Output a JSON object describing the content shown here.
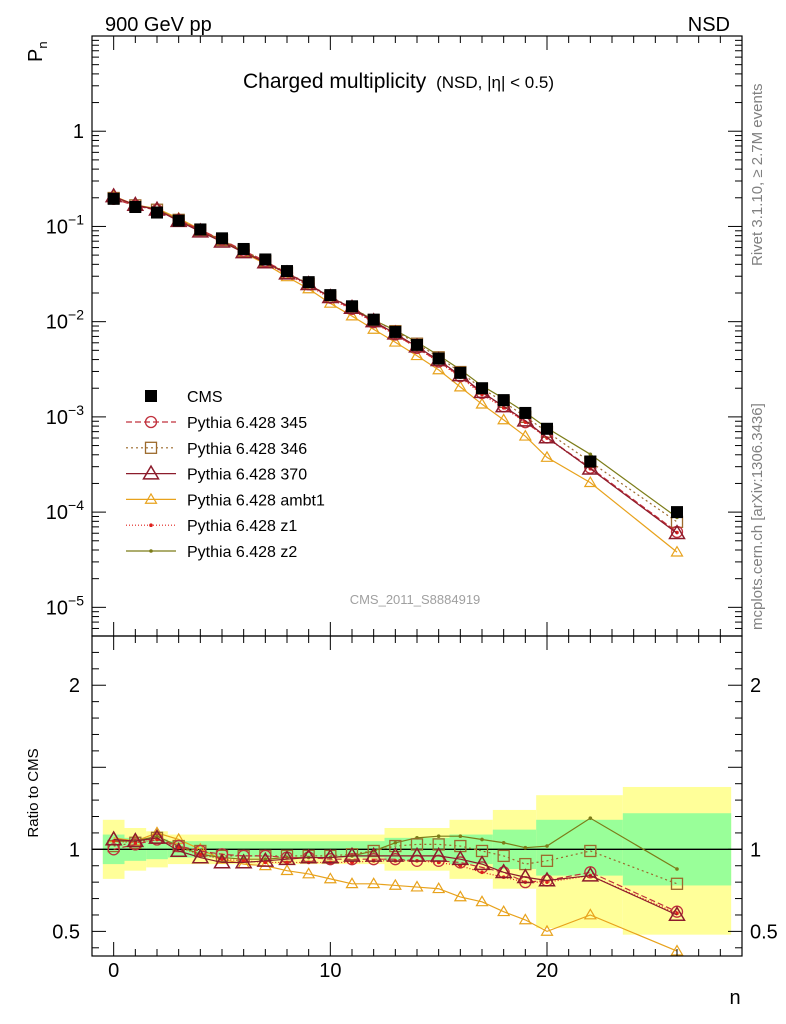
{
  "header": {
    "energy_label": "900 GeV pp",
    "process_label": "NSD"
  },
  "side_labels": {
    "rivet": "Rivet 3.1.10, ≥ 2.7M events",
    "mcplots": "mcplots.cern.ch [arXiv:1306.3436]"
  },
  "chart_data": {
    "type": "line",
    "title": "Charged multiplicity",
    "subtitle": "(NSD, |η| < 0.5)",
    "analysis_id": "CMS_2011_S8884919",
    "xlabel": "n",
    "ylabel": "P_n",
    "ratio_ylabel": "Ratio to CMS",
    "xlim": [
      -1,
      29
    ],
    "ylim": [
      5e-06,
      10
    ],
    "yscale": "log",
    "ratio_ylim": [
      0.35,
      2.3
    ],
    "x_ticks": [
      0,
      10,
      20
    ],
    "main_y_ticks": [
      {
        "value": 1e-05,
        "base": "10",
        "exp": "−5"
      },
      {
        "value": 0.0001,
        "base": "10",
        "exp": "−4"
      },
      {
        "value": 0.001,
        "base": "10",
        "exp": "−3"
      },
      {
        "value": 0.01,
        "base": "10",
        "exp": "−2"
      },
      {
        "value": 0.1,
        "base": "10",
        "exp": "−1"
      },
      {
        "value": 1,
        "base": "1",
        "exp": ""
      }
    ],
    "ratio_y_ticks": [
      {
        "value": 0.5,
        "label": "0.5"
      },
      {
        "value": 1,
        "label": "1"
      },
      {
        "value": 2,
        "label": "2"
      }
    ],
    "x": [
      0,
      1,
      2,
      3,
      4,
      5,
      6,
      7,
      8,
      9,
      10,
      11,
      12,
      13,
      14,
      15,
      16,
      17,
      18,
      19,
      20,
      22,
      26
    ],
    "data": {
      "name": "CMS",
      "values": [
        0.195,
        0.16,
        0.14,
        0.115,
        0.093,
        0.075,
        0.058,
        0.045,
        0.034,
        0.026,
        0.019,
        0.0145,
        0.0105,
        0.0078,
        0.0057,
        0.0041,
        0.0029,
        0.002,
        0.0015,
        0.0011,
        0.00075,
        0.00034,
        0.0001
      ],
      "ratio_band_inner": [
        {
          "x0": -0.5,
          "x1": 0.5,
          "lo": 0.91,
          "hi": 1.09
        },
        {
          "x0": 0.5,
          "x1": 1.5,
          "lo": 0.93,
          "hi": 1.07
        },
        {
          "x0": 1.5,
          "x1": 2.5,
          "lo": 0.94,
          "hi": 1.06
        },
        {
          "x0": 2.5,
          "x1": 12.5,
          "lo": 0.95,
          "hi": 1.05
        },
        {
          "x0": 12.5,
          "x1": 15.5,
          "lo": 0.93,
          "hi": 1.07
        },
        {
          "x0": 15.5,
          "x1": 17.5,
          "lo": 0.91,
          "hi": 1.09
        },
        {
          "x0": 17.5,
          "x1": 19.5,
          "lo": 0.88,
          "hi": 1.12
        },
        {
          "x0": 19.5,
          "x1": 23.5,
          "lo": 0.84,
          "hi": 1.18
        },
        {
          "x0": 23.5,
          "x1": 28.5,
          "lo": 0.78,
          "hi": 1.22
        }
      ],
      "ratio_band_outer": [
        {
          "x0": -0.5,
          "x1": 0.5,
          "lo": 0.82,
          "hi": 1.18
        },
        {
          "x0": 0.5,
          "x1": 1.5,
          "lo": 0.87,
          "hi": 1.13
        },
        {
          "x0": 1.5,
          "x1": 2.5,
          "lo": 0.89,
          "hi": 1.11
        },
        {
          "x0": 2.5,
          "x1": 12.5,
          "lo": 0.91,
          "hi": 1.09
        },
        {
          "x0": 12.5,
          "x1": 15.5,
          "lo": 0.87,
          "hi": 1.13
        },
        {
          "x0": 15.5,
          "x1": 17.5,
          "lo": 0.82,
          "hi": 1.18
        },
        {
          "x0": 17.5,
          "x1": 19.5,
          "lo": 0.76,
          "hi": 1.24
        },
        {
          "x0": 19.5,
          "x1": 23.5,
          "lo": 0.52,
          "hi": 1.33
        },
        {
          "x0": 23.5,
          "x1": 28.5,
          "lo": 0.48,
          "hi": 1.38
        }
      ]
    },
    "series": [
      {
        "name": "Pythia 6.428 345",
        "color": "#c0303c",
        "marker": "circle",
        "dash": "6,3",
        "ratio": [
          1.0,
          1.03,
          1.06,
          1.02,
          0.99,
          0.97,
          0.96,
          0.96,
          0.95,
          0.95,
          0.94,
          0.94,
          0.94,
          0.94,
          0.93,
          0.93,
          0.92,
          0.89,
          0.86,
          0.8,
          0.81,
          0.86,
          0.62
        ]
      },
      {
        "name": "Pythia 6.428 346",
        "color": "#9c6a2c",
        "marker": "square",
        "dash": "2,3",
        "ratio": [
          1.02,
          1.04,
          1.07,
          1.02,
          0.99,
          0.96,
          0.96,
          0.96,
          0.96,
          0.96,
          0.96,
          0.97,
          0.99,
          1.02,
          1.03,
          1.03,
          1.02,
          0.99,
          0.96,
          0.91,
          0.93,
          0.99,
          0.79
        ]
      },
      {
        "name": "Pythia 6.428 370",
        "color": "#8c1c2c",
        "marker": "triangle",
        "dash": "",
        "ratio": [
          1.06,
          1.05,
          1.07,
          0.99,
          0.95,
          0.92,
          0.92,
          0.93,
          0.94,
          0.95,
          0.95,
          0.96,
          0.96,
          0.96,
          0.96,
          0.96,
          0.94,
          0.91,
          0.86,
          0.83,
          0.81,
          0.84,
          0.6
        ]
      },
      {
        "name": "Pythia 6.428 ambt1",
        "color": "#e8a21c",
        "marker": "triangle-small",
        "dash": "",
        "ratio": [
          1.07,
          1.05,
          1.1,
          1.06,
          1.0,
          0.94,
          0.91,
          0.9,
          0.87,
          0.85,
          0.82,
          0.79,
          0.79,
          0.78,
          0.77,
          0.76,
          0.71,
          0.68,
          0.62,
          0.57,
          0.5,
          0.6,
          0.38
        ]
      },
      {
        "name": "Pythia 6.428 z1",
        "color": "#e0201c",
        "marker": "dot",
        "dash": "1,2",
        "ratio": [
          1.05,
          1.04,
          1.06,
          1.01,
          0.97,
          0.94,
          0.93,
          0.92,
          0.92,
          0.92,
          0.92,
          0.92,
          0.93,
          0.93,
          0.93,
          0.92,
          0.9,
          0.86,
          0.83,
          0.8,
          0.8,
          0.84,
          0.61
        ]
      },
      {
        "name": "Pythia 6.428 z2",
        "color": "#7c7c18",
        "marker": "dot",
        "dash": "",
        "ratio": [
          1.05,
          1.05,
          1.08,
          1.02,
          0.97,
          0.95,
          0.94,
          0.94,
          0.95,
          0.95,
          0.95,
          0.96,
          0.99,
          1.04,
          1.07,
          1.08,
          1.08,
          1.06,
          1.04,
          1.01,
          1.02,
          1.19,
          0.88
        ]
      }
    ]
  }
}
